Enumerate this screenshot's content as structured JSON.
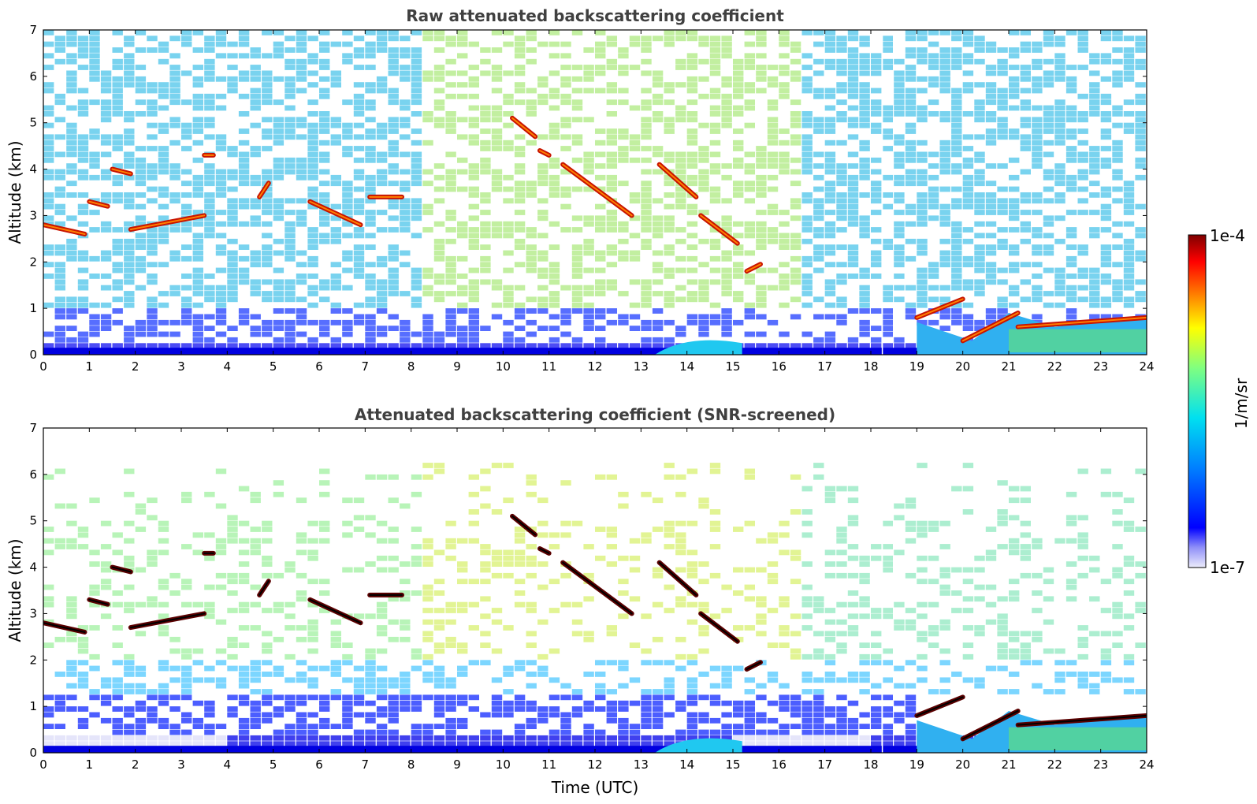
{
  "chart_data": [
    {
      "type": "heatmap",
      "title": "Raw attenuated backscattering coefficient",
      "xlabel": "",
      "ylabel": "Altitude (km)",
      "xlim": [
        0,
        24
      ],
      "ylim": [
        0,
        7
      ],
      "x_ticks": [
        "0",
        "1",
        "2",
        "3",
        "4",
        "5",
        "6",
        "7",
        "8",
        "9",
        "10",
        "11",
        "12",
        "13",
        "14",
        "15",
        "16",
        "17",
        "18",
        "19",
        "20",
        "21",
        "22",
        "23",
        "24"
      ],
      "y_ticks": [
        "0",
        "1",
        "2",
        "3",
        "4",
        "5",
        "6",
        "7"
      ],
      "screened": false,
      "cloud_layers": [
        {
          "t_start": 0.0,
          "t_end": 0.9,
          "alt_start": 2.8,
          "alt_end": 2.6
        },
        {
          "t_start": 1.0,
          "t_end": 1.4,
          "alt_start": 3.3,
          "alt_end": 3.2
        },
        {
          "t_start": 1.5,
          "t_end": 1.9,
          "alt_start": 4.0,
          "alt_end": 3.9
        },
        {
          "t_start": 1.9,
          "t_end": 3.5,
          "alt_start": 2.7,
          "alt_end": 3.0
        },
        {
          "t_start": 3.5,
          "t_end": 3.7,
          "alt_start": 4.3,
          "alt_end": 4.3
        },
        {
          "t_start": 4.7,
          "t_end": 4.9,
          "alt_start": 3.4,
          "alt_end": 3.7
        },
        {
          "t_start": 5.8,
          "t_end": 6.9,
          "alt_start": 3.3,
          "alt_end": 2.8
        },
        {
          "t_start": 7.1,
          "t_end": 7.8,
          "alt_start": 3.4,
          "alt_end": 3.4
        },
        {
          "t_start": 10.2,
          "t_end": 10.7,
          "alt_start": 5.1,
          "alt_end": 4.7
        },
        {
          "t_start": 10.8,
          "t_end": 11.0,
          "alt_start": 4.4,
          "alt_end": 4.3
        },
        {
          "t_start": 11.3,
          "t_end": 12.8,
          "alt_start": 4.1,
          "alt_end": 3.0
        },
        {
          "t_start": 13.4,
          "t_end": 14.2,
          "alt_start": 4.1,
          "alt_end": 3.4
        },
        {
          "t_start": 14.3,
          "t_end": 15.1,
          "alt_start": 3.0,
          "alt_end": 2.4
        },
        {
          "t_start": 15.3,
          "t_end": 15.6,
          "alt_start": 1.8,
          "alt_end": 1.95
        },
        {
          "t_start": 19.0,
          "t_end": 20.0,
          "alt_start": 0.8,
          "alt_end": 1.2
        },
        {
          "t_start": 20.0,
          "t_end": 21.2,
          "alt_start": 0.3,
          "alt_end": 0.9
        },
        {
          "t_start": 21.2,
          "t_end": 24.0,
          "alt_start": 0.6,
          "alt_end": 0.8
        }
      ]
    },
    {
      "type": "heatmap",
      "title": "Attenuated backscattering coefficient (SNR-screened)",
      "xlabel": "Time (UTC)",
      "ylabel": "Altitude (km)",
      "xlim": [
        0,
        24
      ],
      "ylim": [
        0,
        7
      ],
      "x_ticks": [
        "0",
        "1",
        "2",
        "3",
        "4",
        "5",
        "6",
        "7",
        "8",
        "9",
        "10",
        "11",
        "12",
        "13",
        "14",
        "15",
        "16",
        "17",
        "18",
        "19",
        "20",
        "21",
        "22",
        "23",
        "24"
      ],
      "y_ticks": [
        "0",
        "1",
        "2",
        "3",
        "4",
        "5",
        "6",
        "7"
      ],
      "screened": true
    }
  ],
  "colorbar": {
    "label": "1/m/sr",
    "max_label": "1e-4",
    "min_label": "1e-7",
    "scale": "log",
    "colormap": [
      "#e6e6fa",
      "#0000ff",
      "#00ffff",
      "#7fff7f",
      "#ffff00",
      "#ff7f00",
      "#ff0000",
      "#7f0000"
    ]
  }
}
